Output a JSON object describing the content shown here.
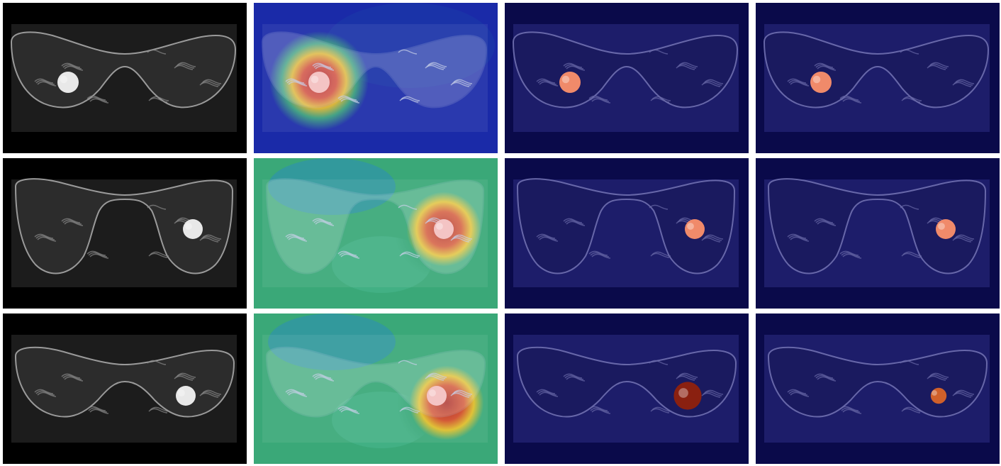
{
  "grid": {
    "rows": 3,
    "columns": 4,
    "column_kinds": [
      "mri-slice",
      "attention-heatmap",
      "segmentation-overlay",
      "segmentation-overlay"
    ]
  },
  "colors": {
    "background": "#ffffff",
    "mri_background": "#000000",
    "overlay_tint": "#0a0a4a",
    "lesion_highlight": "#f08a6a",
    "heatmap_low": "#1a2aa8",
    "heatmap_mid": "#3aa878",
    "heatmap_high": "#b01010"
  },
  "rows": [
    {
      "lesion_side": "left"
    },
    {
      "lesion_side": "right"
    },
    {
      "lesion_side": "right"
    }
  ]
}
